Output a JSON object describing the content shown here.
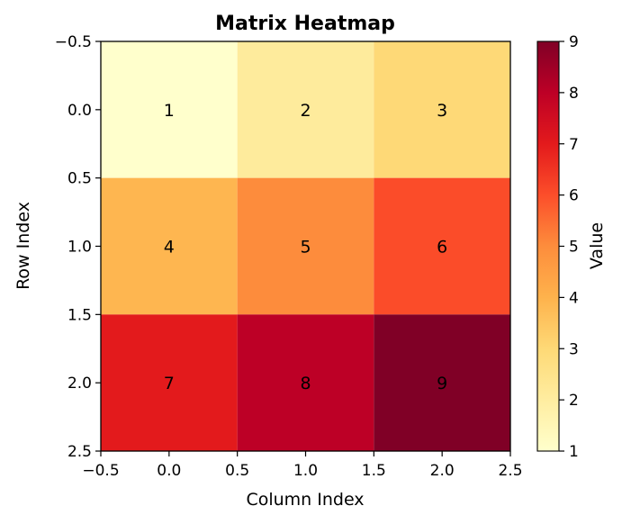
{
  "chart_data": {
    "type": "heatmap",
    "title": "Matrix Heatmap",
    "xlabel": "Column Index",
    "ylabel": "Row Index",
    "colorbar_label": "Value",
    "colormap": "YlOrRd",
    "matrix": [
      [
        1,
        2,
        3
      ],
      [
        4,
        5,
        6
      ],
      [
        7,
        8,
        9
      ]
    ],
    "cell_labels": [
      [
        "1",
        "2",
        "3"
      ],
      [
        "4",
        "5",
        "6"
      ],
      [
        "7",
        "8",
        "9"
      ]
    ],
    "xlim": [
      -0.5,
      2.5
    ],
    "ylim": [
      2.5,
      -0.5
    ],
    "x_ticks": [
      "−0.5",
      "0.0",
      "0.5",
      "1.0",
      "1.5",
      "2.0",
      "2.5"
    ],
    "y_ticks": [
      "−0.5",
      "0.0",
      "0.5",
      "1.0",
      "1.5",
      "2.0",
      "2.5"
    ],
    "colorbar_range": [
      1,
      9
    ],
    "colorbar_ticks": [
      "1",
      "2",
      "3",
      "4",
      "5",
      "6",
      "7",
      "8",
      "9"
    ],
    "cell_colors": [
      [
        "#ffffcc",
        "#feeb9c",
        "#fed977"
      ],
      [
        "#feb650",
        "#fd8c3c",
        "#fb4c29"
      ],
      [
        "#e31a1c",
        "#bd0026",
        "#800026"
      ]
    ],
    "colormap_stops": [
      "#ffffcc",
      "#ffeda0",
      "#fed976",
      "#feb24c",
      "#fd8d3c",
      "#fc4e2a",
      "#e31a1c",
      "#bd0026",
      "#800026"
    ]
  }
}
